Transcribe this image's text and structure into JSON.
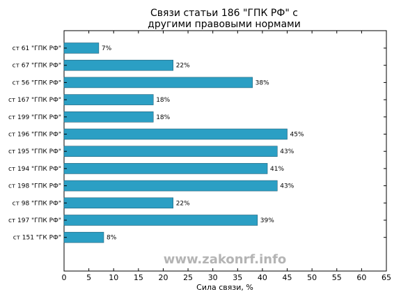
{
  "chart_data": {
    "type": "bar",
    "orientation": "horizontal",
    "title_line1": "Связи статьи 186 \"ГПК РФ\" с",
    "title_line2": "другими правовыми нормами",
    "xlabel": "Сила связи, %",
    "ylabel": "",
    "xlim": [
      0,
      65
    ],
    "xticks": [
      "0",
      "5",
      "10",
      "15",
      "20",
      "25",
      "30",
      "35",
      "40",
      "45",
      "50",
      "55",
      "60",
      "65"
    ],
    "categories": [
      "ст 61 \"ГПК РФ\"",
      "ст 67 \"ГПК РФ\"",
      "ст 56 \"ГПК РФ\"",
      "ст 167 \"ГПК РФ\"",
      "ст 199 \"ГПК РФ\"",
      "ст 196 \"ГПК РФ\"",
      "ст 195 \"ГПК РФ\"",
      "ст 194 \"ГПК РФ\"",
      "ст 198 \"ГПК РФ\"",
      "ст 98 \"ГПК РФ\"",
      "ст 197 \"ГПК РФ\"",
      "ст 151 \"ГК РФ\""
    ],
    "values": [
      7,
      22,
      38,
      18,
      18,
      45,
      43,
      41,
      43,
      22,
      39,
      8
    ],
    "value_labels": [
      "7%",
      "22%",
      "38%",
      "18%",
      "18%",
      "45%",
      "43%",
      "41%",
      "43%",
      "22%",
      "39%",
      "8%"
    ],
    "bar_color": "#2b9fc4",
    "grid": false,
    "legend": "none"
  },
  "watermark": "www.zakonrf.info"
}
